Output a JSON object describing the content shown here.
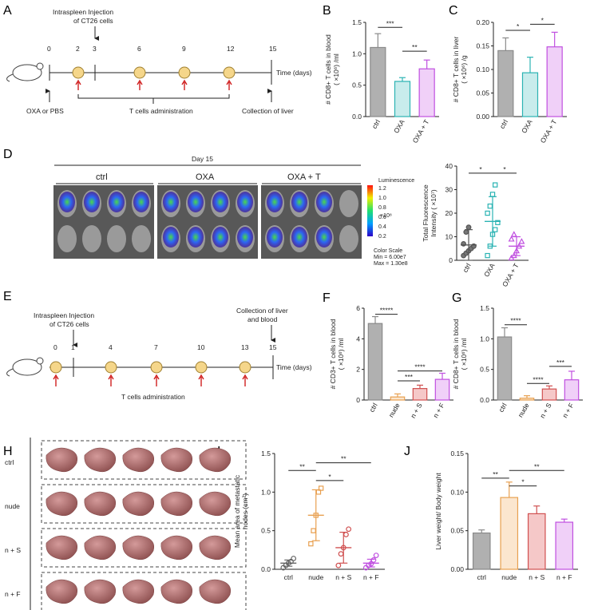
{
  "panels": {
    "A": {
      "label": "A",
      "injection": [
        "Intraspleen Injection",
        "of CT26 cells"
      ],
      "days": [
        "0",
        "2",
        "3",
        "6",
        "9",
        "12",
        "15"
      ],
      "time_label": "Time (days)",
      "oxa_label": "OXA or PBS",
      "tcell_label": "T cells administration",
      "collect_label": "Collection of liver"
    },
    "D": {
      "label": "D",
      "day_label": "Day 15",
      "groups": [
        "ctrl",
        "OXA",
        "OXA + T"
      ],
      "scale_title": "Luminescence",
      "scale_ticks": [
        "1.2",
        "1.0",
        "0.8",
        "0.6",
        "0.4",
        "0.2"
      ],
      "scale_unit": "×10⁸",
      "scale_footer": [
        "Color Scale",
        "Min = 6.00e7",
        "Max = 1.30e8"
      ]
    },
    "E": {
      "label": "E",
      "injection": [
        "Intraspleen Injection",
        "of CT26 cells"
      ],
      "collect": [
        "Collection of liver",
        "and blood"
      ],
      "days": [
        "0",
        "1",
        "4",
        "7",
        "10",
        "13",
        "15"
      ],
      "time_label": "Time (days)",
      "tcell_label": "T cells administration"
    },
    "H": {
      "label": "H",
      "rows": [
        "ctrl",
        "nude",
        "n + S",
        "n + F"
      ]
    }
  },
  "chart_data": [
    {
      "id": "B",
      "type": "bar",
      "ylabel": [
        "# CD8+ T cells in blood",
        "( ×10⁶) /ml"
      ],
      "categories": [
        "ctrl",
        "OXA",
        "OXA + T"
      ],
      "values": [
        1.1,
        0.56,
        0.76
      ],
      "errors": [
        0.22,
        0.06,
        0.14
      ],
      "colors": [
        "#8a8a8a",
        "#2bb3b3",
        "#c050e0"
      ],
      "fills": [
        "#b0b0b0",
        "#c8ecec",
        "#f0d0f8"
      ],
      "ylim": [
        0,
        1.5
      ],
      "yticks": [
        "0.0",
        "0.5",
        "1.0",
        "1.5"
      ],
      "sig": [
        {
          "a": 0,
          "b": 1,
          "text": "***",
          "y": 1.42
        },
        {
          "a": 1,
          "b": 2,
          "text": "**",
          "y": 1.04
        }
      ]
    },
    {
      "id": "C",
      "type": "bar",
      "ylabel": [
        "# CD8+ T cells in liver",
        "( ×10⁶) /g"
      ],
      "categories": [
        "ctrl",
        "OXA",
        "OXA + T"
      ],
      "values": [
        0.14,
        0.093,
        0.148
      ],
      "errors": [
        0.027,
        0.033,
        0.031
      ],
      "colors": [
        "#8a8a8a",
        "#2bb3b3",
        "#c050e0"
      ],
      "fills": [
        "#b0b0b0",
        "#c8ecec",
        "#f0d0f8"
      ],
      "ylim": [
        0,
        0.2
      ],
      "yticks": [
        "0.00",
        "0.05",
        "0.10",
        "0.15",
        "0.20"
      ],
      "sig": [
        {
          "a": 0,
          "b": 1,
          "text": "*",
          "y": 0.183
        },
        {
          "a": 1,
          "b": 2,
          "text": "*",
          "y": 0.196
        }
      ]
    },
    {
      "id": "D2",
      "type": "scatter",
      "ylabel": [
        "Total Fluorescence",
        "Intensity ( ×10⁷)"
      ],
      "categories": [
        "ctrl",
        "OXA",
        "OXA + T"
      ],
      "points": [
        [
          2,
          3,
          4,
          5,
          6,
          7,
          12,
          14
        ],
        [
          2,
          6,
          11,
          13,
          16,
          20,
          23,
          28,
          32
        ],
        [
          1,
          2,
          4,
          6,
          8,
          9,
          11
        ]
      ],
      "means": [
        6.5,
        16.5,
        6
      ],
      "sd": [
        6.5,
        10.5,
        4
      ],
      "colors": [
        "#555555",
        "#2bb3b3",
        "#c050e0"
      ],
      "markers": [
        "circle",
        "square",
        "triangle"
      ],
      "ylim": [
        0,
        40
      ],
      "yticks": [
        "0",
        "10",
        "20",
        "30",
        "40"
      ],
      "sig": [
        {
          "a": 0,
          "b": 1,
          "text": "*",
          "y": 37
        },
        {
          "a": 1,
          "b": 2,
          "text": "*",
          "y": 37
        }
      ]
    },
    {
      "id": "F",
      "type": "bar",
      "ylabel": [
        "# CD3+ T cells in blood",
        "( ×10⁶) /ml"
      ],
      "categories": [
        "ctrl",
        "nude",
        "n + S",
        "n + F"
      ],
      "values": [
        5.0,
        0.2,
        0.75,
        1.35
      ],
      "errors": [
        0.45,
        0.2,
        0.22,
        0.4
      ],
      "colors": [
        "#8a8a8a",
        "#e8a050",
        "#d05050",
        "#c050e0"
      ],
      "fills": [
        "#b0b0b0",
        "#fbe6cf",
        "#f5c8c8",
        "#f0d0f8"
      ],
      "ylim": [
        0,
        6
      ],
      "yticks": [
        "0",
        "2",
        "4",
        "6"
      ],
      "sig": [
        {
          "a": 0,
          "b": 1,
          "text": "*****",
          "y": 5.6
        },
        {
          "a": 1,
          "b": 3,
          "text": "****",
          "y": 1.9
        },
        {
          "a": 1,
          "b": 2,
          "text": "***",
          "y": 1.25
        }
      ]
    },
    {
      "id": "G",
      "type": "bar",
      "ylabel": [
        "# CD8+ T cells in blood",
        "( ×10⁶) /ml"
      ],
      "categories": [
        "ctrl",
        "nude",
        "n + S",
        "n + F"
      ],
      "values": [
        1.03,
        0.03,
        0.18,
        0.33
      ],
      "errors": [
        0.15,
        0.04,
        0.05,
        0.14
      ],
      "colors": [
        "#8a8a8a",
        "#e8a050",
        "#d05050",
        "#c050e0"
      ],
      "fills": [
        "#b0b0b0",
        "#fbe6cf",
        "#f5c8c8",
        "#f0d0f8"
      ],
      "ylim": [
        0,
        1.5
      ],
      "yticks": [
        "0.0",
        "0.5",
        "1.0",
        "1.5"
      ],
      "sig": [
        {
          "a": 0,
          "b": 1,
          "text": "****",
          "y": 1.23
        },
        {
          "a": 2,
          "b": 3,
          "text": "***",
          "y": 0.55
        },
        {
          "a": 1,
          "b": 2,
          "text": "****",
          "y": 0.27
        }
      ]
    },
    {
      "id": "I",
      "type": "scatter",
      "ylabel": [
        "Mean area of metastatic",
        "nodes (cm²)"
      ],
      "categories": [
        "ctrl",
        "nude",
        "n + S",
        "n + F"
      ],
      "points": [
        [
          0.02,
          0.05,
          0.08,
          0.1,
          0.14
        ],
        [
          0.33,
          0.5,
          0.7,
          1.0,
          1.05
        ],
        [
          0.05,
          0.2,
          0.28,
          0.45,
          0.52
        ],
        [
          0.02,
          0.05,
          0.07,
          0.12,
          0.18
        ]
      ],
      "means": [
        0.08,
        0.7,
        0.28,
        0.08
      ],
      "sd": [
        0.04,
        0.33,
        0.2,
        0.05
      ],
      "colors": [
        "#666666",
        "#e8a050",
        "#d05050",
        "#c050e0"
      ],
      "markers": [
        "circle",
        "square",
        "circle",
        "circle"
      ],
      "ylim": [
        0,
        1.5
      ],
      "yticks": [
        "0.0",
        "0.5",
        "1.0",
        "1.5"
      ],
      "sig": [
        {
          "a": 0,
          "b": 1,
          "text": "**",
          "y": 1.28
        },
        {
          "a": 1,
          "b": 3,
          "text": "**",
          "y": 1.38
        },
        {
          "a": 1,
          "b": 2,
          "text": "*",
          "y": 1.15
        }
      ]
    },
    {
      "id": "J",
      "type": "bar",
      "ylabel": [
        "Liver weight/ Body weight"
      ],
      "categories": [
        "ctrl",
        "nude",
        "n + S",
        "n + F"
      ],
      "values": [
        0.047,
        0.093,
        0.072,
        0.061
      ],
      "errors": [
        0.004,
        0.02,
        0.01,
        0.004
      ],
      "colors": [
        "#8a8a8a",
        "#e8a050",
        "#d05050",
        "#c050e0"
      ],
      "fills": [
        "#b0b0b0",
        "#fbe6cf",
        "#f5c8c8",
        "#f0d0f8"
      ],
      "ylim": [
        0,
        0.15
      ],
      "yticks": [
        "0.00",
        "0.05",
        "0.10",
        "0.15"
      ],
      "sig": [
        {
          "a": 0,
          "b": 1,
          "text": "**",
          "y": 0.118
        },
        {
          "a": 1,
          "b": 3,
          "text": "**",
          "y": 0.128
        },
        {
          "a": 1,
          "b": 2,
          "text": "*",
          "y": 0.108
        }
      ]
    }
  ]
}
